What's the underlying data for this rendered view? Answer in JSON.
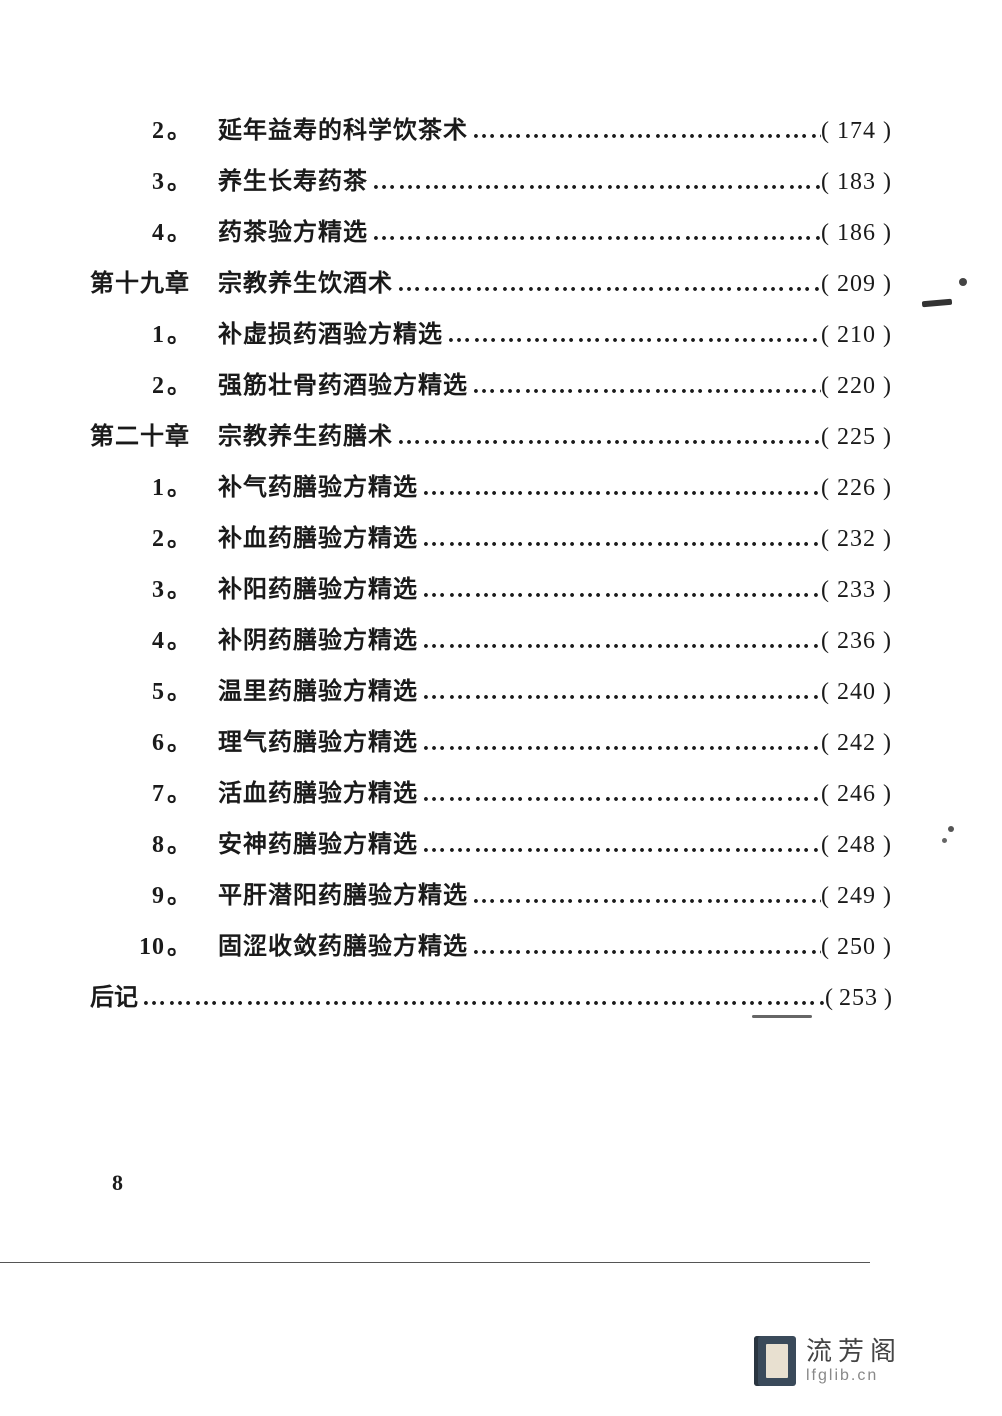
{
  "page_number": "8",
  "leader_char": "…",
  "text_color": "#1a1a1a",
  "background_color": "#ffffff",
  "font_family": "SimSun",
  "base_fontsize_pt": 18,
  "entries": [
    {
      "kind": "sub",
      "num": "2",
      "title": "延年益寿的科学饮茶术",
      "page": "174"
    },
    {
      "kind": "sub",
      "num": "3",
      "title": "养生长寿药茶",
      "page": "183"
    },
    {
      "kind": "sub",
      "num": "4",
      "title": "药茶验方精选",
      "page": "186"
    },
    {
      "kind": "chapter",
      "label": "第十九章",
      "title": "宗教养生饮酒术",
      "page": "209"
    },
    {
      "kind": "sub",
      "num": "1",
      "title": "补虚损药酒验方精选",
      "page": "210"
    },
    {
      "kind": "sub",
      "num": "2",
      "title": "强筋壮骨药酒验方精选",
      "page": "220"
    },
    {
      "kind": "chapter",
      "label": "第二十章",
      "title": "宗教养生药膳术",
      "page": "225"
    },
    {
      "kind": "sub",
      "num": "1",
      "title": "补气药膳验方精选",
      "page": "226"
    },
    {
      "kind": "sub",
      "num": "2",
      "title": "补血药膳验方精选",
      "page": "232"
    },
    {
      "kind": "sub",
      "num": "3",
      "title": "补阳药膳验方精选",
      "page": "233"
    },
    {
      "kind": "sub",
      "num": "4",
      "title": "补阴药膳验方精选",
      "page": "236"
    },
    {
      "kind": "sub",
      "num": "5",
      "title": "温里药膳验方精选",
      "page": "240"
    },
    {
      "kind": "sub",
      "num": "6",
      "title": "理气药膳验方精选",
      "page": "242"
    },
    {
      "kind": "sub",
      "num": "7",
      "title": "活血药膳验方精选",
      "page": "246"
    },
    {
      "kind": "sub",
      "num": "8",
      "title": "安神药膳验方精选",
      "page": "248"
    },
    {
      "kind": "sub",
      "num": "9",
      "title": "平肝潜阳药膳验方精选",
      "page": "249"
    },
    {
      "kind": "sub",
      "num": "10",
      "title": "固涩收敛药膳验方精选",
      "page": "250"
    }
  ],
  "afterword": {
    "label": "后记",
    "page": "253"
  },
  "watermark": {
    "cn": "流芳阁",
    "en": "lfglib.cn"
  }
}
